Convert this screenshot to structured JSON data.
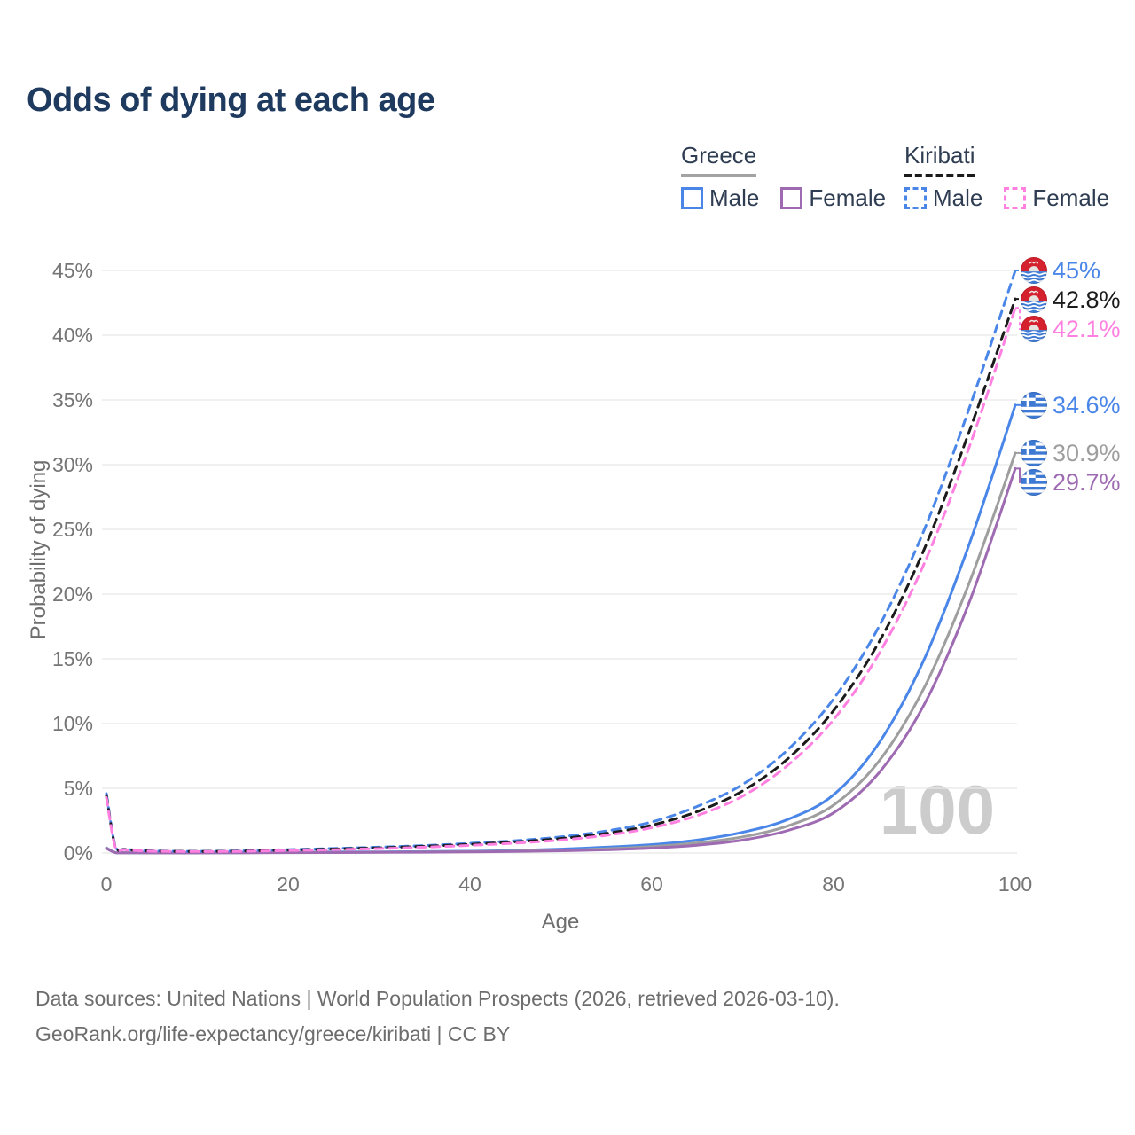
{
  "page_title": "Odds of dying at each age",
  "legend": {
    "groups": [
      {
        "label": "Greece",
        "line_style": "solid",
        "line_color": "#a3a3a3",
        "items": [
          {
            "label": "Male",
            "color": "#4a86e8",
            "dashed": false
          },
          {
            "label": "Female",
            "color": "#9e6bb2",
            "dashed": false
          }
        ]
      },
      {
        "label": "Kiribati",
        "line_style": "dashed",
        "line_color": "#1b1b1b",
        "items": [
          {
            "label": "Male",
            "color": "#4a86e8",
            "dashed": true
          },
          {
            "label": "Female",
            "color": "#ff80e0",
            "dashed": true
          }
        ]
      }
    ]
  },
  "watermark": "100",
  "source": {
    "line1": "Data sources: United Nations | World Population Prospects (2026, retrieved 2026-03-10).",
    "line2": "GeoRank.org/life-expectancy/greece/kiribati | CC BY"
  },
  "colors": {
    "title": "#1e3a5f",
    "axis_text": "#757575",
    "grid": "#e8e8e8",
    "watermark": "#cccccc"
  },
  "chart_data": {
    "type": "line",
    "title": "Odds of dying at each age",
    "xlabel": "Age",
    "ylabel": "Probability of dying",
    "xlim": [
      0,
      100
    ],
    "ylim": [
      0,
      45
    ],
    "x_ticks": [
      0,
      20,
      40,
      60,
      80,
      100
    ],
    "y_ticks_percent": [
      0,
      5,
      10,
      15,
      20,
      25,
      30,
      35,
      40,
      45
    ],
    "grid": "horizontal",
    "legend_position": "top-right",
    "ages": [
      0,
      1,
      2,
      3,
      5,
      10,
      15,
      20,
      25,
      30,
      35,
      40,
      45,
      50,
      55,
      60,
      65,
      70,
      75,
      80,
      85,
      90,
      95,
      100
    ],
    "series": [
      {
        "id": "greece_male",
        "name": "Greece Male",
        "country": "Greece",
        "sex": "Male",
        "color": "#4a86e8",
        "dashed": false,
        "flag": "greece",
        "end_label": "34.6%",
        "end_value": 34.6,
        "values": [
          0.4,
          0.032,
          0.022,
          0.018,
          0.012,
          0.012,
          0.03,
          0.065,
          0.08,
          0.09,
          0.11,
          0.14,
          0.2,
          0.3,
          0.45,
          0.65,
          1.0,
          1.6,
          2.6,
          4.5,
          8.5,
          15.0,
          24.0,
          34.6
        ]
      },
      {
        "id": "greece_total",
        "name": "Greece (both sexes)",
        "country": "Greece",
        "sex": "Total",
        "color": "#9e9e9e",
        "dashed": false,
        "flag": "greece",
        "end_label": "30.9%",
        "end_value": 30.9,
        "values": [
          0.38,
          0.028,
          0.019,
          0.015,
          0.01,
          0.01,
          0.022,
          0.045,
          0.055,
          0.065,
          0.085,
          0.11,
          0.15,
          0.22,
          0.33,
          0.5,
          0.78,
          1.25,
          2.1,
          3.7,
          7.1,
          12.8,
          21.0,
          30.9
        ]
      },
      {
        "id": "greece_female",
        "name": "Greece Female",
        "country": "Greece",
        "sex": "Female",
        "color": "#9e6bb2",
        "dashed": false,
        "flag": "greece",
        "end_label": "29.7%",
        "end_value": 29.7,
        "values": [
          0.35,
          0.025,
          0.017,
          0.013,
          0.009,
          0.009,
          0.018,
          0.03,
          0.035,
          0.045,
          0.06,
          0.085,
          0.12,
          0.17,
          0.25,
          0.38,
          0.6,
          1.0,
          1.75,
          3.1,
          6.2,
          11.5,
          19.5,
          29.7
        ]
      },
      {
        "id": "kiribati_male",
        "name": "Kiribati Male",
        "country": "Kiribati",
        "sex": "Male",
        "color": "#4a86e8",
        "dashed": true,
        "flag": "kiribati",
        "end_label": "45%",
        "end_value": 45.0,
        "values": [
          4.6,
          0.45,
          0.3,
          0.24,
          0.16,
          0.13,
          0.17,
          0.26,
          0.35,
          0.45,
          0.58,
          0.75,
          0.95,
          1.25,
          1.7,
          2.4,
          3.6,
          5.3,
          8.0,
          11.9,
          17.5,
          25.0,
          34.5,
          45.0
        ]
      },
      {
        "id": "kiribati_total",
        "name": "Kiribati (both sexes)",
        "country": "Kiribati",
        "sex": "Total",
        "color": "#1b1b1b",
        "dashed": true,
        "flag": "kiribati",
        "end_label": "42.8%",
        "end_value": 42.8,
        "values": [
          4.45,
          0.42,
          0.28,
          0.22,
          0.15,
          0.12,
          0.15,
          0.23,
          0.31,
          0.4,
          0.52,
          0.67,
          0.86,
          1.12,
          1.52,
          2.15,
          3.2,
          4.8,
          7.3,
          11.0,
          16.3,
          23.5,
          32.7,
          42.8
        ]
      },
      {
        "id": "kiribati_female",
        "name": "Kiribati Female",
        "country": "Kiribati",
        "sex": "Female",
        "color": "#ff80e0",
        "dashed": true,
        "flag": "kiribati",
        "end_label": "42.1%",
        "end_value": 42.1,
        "values": [
          4.3,
          0.4,
          0.26,
          0.2,
          0.14,
          0.11,
          0.13,
          0.19,
          0.26,
          0.34,
          0.45,
          0.59,
          0.77,
          1.0,
          1.37,
          1.95,
          2.9,
          4.4,
          6.8,
          10.3,
          15.4,
          22.4,
          31.5,
          42.1
        ]
      }
    ]
  }
}
